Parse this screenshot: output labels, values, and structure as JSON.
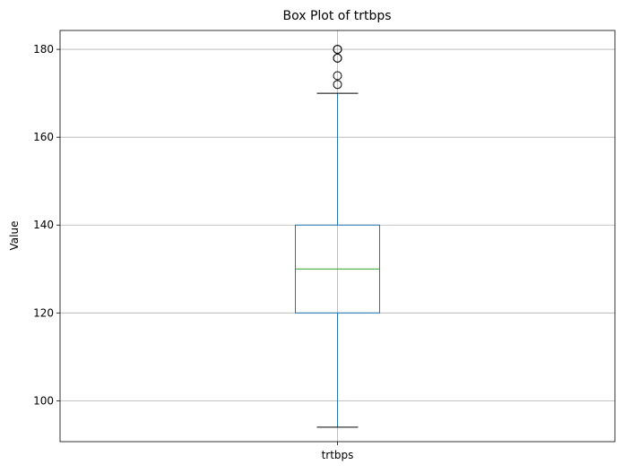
{
  "chart_data": {
    "type": "box",
    "title": "Box Plot of trtbps",
    "xlabel": "",
    "ylabel": "Value",
    "categories": [
      "trtbps"
    ],
    "boxes": [
      {
        "name": "trtbps",
        "whisker_low": 94,
        "q1": 120,
        "median": 130,
        "q3": 140,
        "whisker_high": 170,
        "outliers": [
          172,
          174,
          178,
          178,
          180,
          180
        ]
      }
    ],
    "ylim": [
      90.7,
      184.3
    ],
    "yticks": [
      100,
      120,
      140,
      160,
      180
    ],
    "grid": true,
    "colors": {
      "box": "#1f77b4",
      "median": "#2ca02c",
      "whisker_cap": "#000000",
      "grid": "#b0b0b0",
      "outlier": "#000000"
    }
  }
}
